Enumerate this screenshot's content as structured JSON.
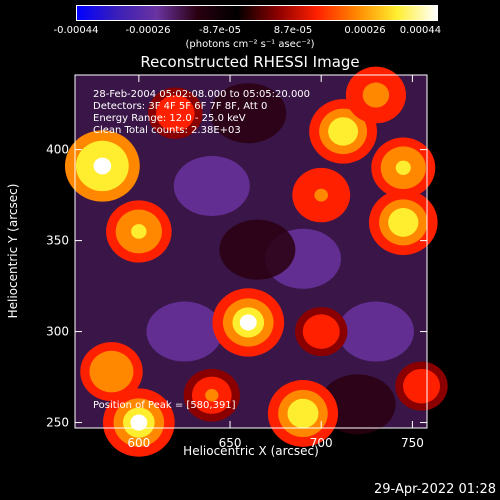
{
  "colorbar": {
    "ticks": [
      "-0.00044",
      "-0.00026",
      "-8.7e-05",
      "8.7e-05",
      "0.00026",
      "0.00044"
    ],
    "units": "(photons cm⁻² s⁻¹ asec⁻²)",
    "colormap": [
      "#0000ff",
      "#3a1fb8",
      "#6a33a0",
      "#2a0010",
      "#000000",
      "#8a0000",
      "#ff2000",
      "#ff8800",
      "#ffee30",
      "#ffffff"
    ]
  },
  "chart_data": {
    "type": "heatmap",
    "title": "Reconstructed RHESSI Image",
    "xlabel": "Heliocentric X (arcsec)",
    "ylabel": "Heliocentric Y (arcsec)",
    "xlim": [
      565,
      758
    ],
    "ylim": [
      247,
      441
    ],
    "xticks": [
      600,
      650,
      700,
      750
    ],
    "yticks": [
      250,
      300,
      350,
      400
    ],
    "zlim": [
      -0.00044,
      0.00044
    ],
    "peak": [
      580,
      391
    ],
    "bright_sources": [
      {
        "x": 580,
        "y": 391,
        "value": 0.00044
      },
      {
        "x": 600,
        "y": 250,
        "value": 0.0004
      },
      {
        "x": 660,
        "y": 305,
        "value": 0.0004
      },
      {
        "x": 690,
        "y": 255,
        "value": 0.00038
      },
      {
        "x": 712,
        "y": 410,
        "value": 0.00035
      },
      {
        "x": 745,
        "y": 360,
        "value": 0.00036
      },
      {
        "x": 745,
        "y": 390,
        "value": 0.0003
      },
      {
        "x": 600,
        "y": 355,
        "value": 0.00032
      },
      {
        "x": 585,
        "y": 278,
        "value": 0.00028
      },
      {
        "x": 640,
        "y": 265,
        "value": 0.0002
      },
      {
        "x": 730,
        "y": 430,
        "value": 0.00025
      },
      {
        "x": 700,
        "y": 375,
        "value": 0.00022
      },
      {
        "x": 620,
        "y": 420,
        "value": 0.00018
      },
      {
        "x": 700,
        "y": 300,
        "value": 0.00015
      },
      {
        "x": 755,
        "y": 270,
        "value": 0.00015
      }
    ],
    "dim_regions": [
      {
        "x": 640,
        "y": 380,
        "value": -0.00026
      },
      {
        "x": 690,
        "y": 340,
        "value": -0.00022
      },
      {
        "x": 625,
        "y": 300,
        "value": -0.0002
      },
      {
        "x": 730,
        "y": 300,
        "value": -0.00028
      },
      {
        "x": 660,
        "y": 420,
        "value": -0.00018
      },
      {
        "x": 720,
        "y": 260,
        "value": -0.00015
      },
      {
        "x": 665,
        "y": 345,
        "value": -0.00015
      }
    ],
    "annotations": [
      "28-Feb-2004 05:02:08.000 to 05:05:20.000",
      "Detectors: 3F 4F 5F 6F 7F 8F, Att 0",
      "Energy Range: 12.0 - 25.0 keV",
      "Clean     Total counts: 2.38E+03"
    ],
    "peak_label": "Position of Peak = [580,391]"
  },
  "timestamp": "29-Apr-2022 01:28"
}
